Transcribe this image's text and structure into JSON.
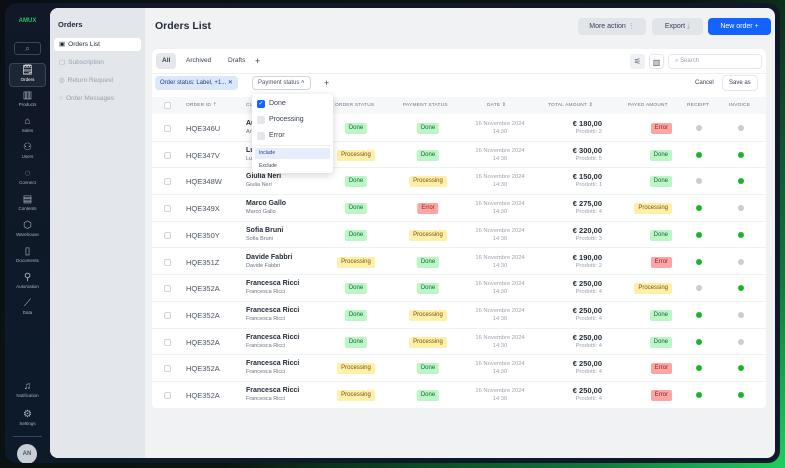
{
  "app": {
    "logo": "AMUX"
  },
  "rail": {
    "search_icon": "search-icon",
    "items": [
      {
        "label": "Orders",
        "icon": "orders-icon",
        "active": true
      },
      {
        "label": "Products",
        "icon": "barcode-icon"
      },
      {
        "label": "Sales",
        "icon": "tag-icon"
      },
      {
        "label": "Users",
        "icon": "users-icon"
      },
      {
        "label": "Connect",
        "icon": "connect-icon"
      },
      {
        "label": "Contents",
        "icon": "contents-icon"
      },
      {
        "label": "Warehouse",
        "icon": "box-icon"
      },
      {
        "label": "Documents",
        "icon": "document-icon"
      },
      {
        "label": "Automation",
        "icon": "automation-icon"
      },
      {
        "label": "Data",
        "icon": "chart-icon"
      }
    ],
    "bottom": [
      {
        "label": "Notification",
        "icon": "bell-icon"
      },
      {
        "label": "Settings",
        "icon": "gear-icon"
      }
    ],
    "avatar": "AN"
  },
  "subnav": {
    "title": "Orders",
    "items": [
      {
        "label": "Orders List",
        "active": true
      },
      {
        "label": "Subscription"
      },
      {
        "label": "Return Request"
      },
      {
        "label": "Order Messages"
      }
    ]
  },
  "header": {
    "title": "Orders List",
    "more_action": "More action",
    "export": "Export",
    "new_order": "New order"
  },
  "tabs": [
    {
      "label": "All",
      "active": true
    },
    {
      "label": "Archived"
    },
    {
      "label": "Drafts"
    }
  ],
  "search": {
    "placeholder": "Search"
  },
  "filters": {
    "chip": "Order status: Label, +1...",
    "payment": "Payment status",
    "cancel": "Cancel",
    "save_as": "Save as"
  },
  "dropdown": {
    "options": [
      {
        "label": "Done",
        "checked": true
      },
      {
        "label": "Processing",
        "checked": false
      },
      {
        "label": "Error",
        "checked": false
      }
    ],
    "modes": [
      "Include",
      "Exclude"
    ],
    "selected_mode": "Include"
  },
  "table": {
    "headers": {
      "order_id": "ORDER ID",
      "customer": "CU",
      "order_status": "ORDER STATUS",
      "payment_status": "PAYMENT STATUS",
      "date": "DATE",
      "total": "TOTAL AMOUNT",
      "payed": "PAYED AMOUNT",
      "receipt": "RECEIPT",
      "invoice": "INVOICE"
    },
    "rows": [
      {
        "id": "HQE346U",
        "name": "Au",
        "sub": "Ar",
        "os": "Done",
        "ps": "Done",
        "date": "16 Novembre 2024",
        "time": "14:30",
        "amount": "€ 180,00",
        "products": "Prodotti: 2",
        "pa": "Error",
        "receipt": false,
        "invoice": false
      },
      {
        "id": "HQE347V",
        "name": "Lu",
        "sub": "Lu",
        "os": "Processing",
        "ps": "Done",
        "date": "16 Novembre 2024",
        "time": "14:30",
        "amount": "€ 300,00",
        "products": "Prodotti: 5",
        "pa": "Done",
        "receipt": true,
        "invoice": true
      },
      {
        "id": "HQE348W",
        "name": "Giulia Neri",
        "sub": "Giulia Neri",
        "os": "Done",
        "ps": "Processing",
        "date": "16 Novembre 2024",
        "time": "14:30",
        "amount": "€ 150,00",
        "products": "Prodotti: 1",
        "pa": "Done",
        "receipt": false,
        "invoice": true
      },
      {
        "id": "HQE349X",
        "name": "Marco Gallo",
        "sub": "Marco Gallo",
        "os": "Done",
        "ps": "Error",
        "date": "16 Novembre 2024",
        "time": "14:30",
        "amount": "€ 275,00",
        "products": "Prodotti: 4",
        "pa": "Processing",
        "receipt": true,
        "invoice": false
      },
      {
        "id": "HQE350Y",
        "name": "Sofia Bruni",
        "sub": "Sofia Bruni",
        "os": "Done",
        "ps": "Processing",
        "date": "16 Novembre 2024",
        "time": "14:30",
        "amount": "€ 220,00",
        "products": "Prodotti: 3",
        "pa": "Done",
        "receipt": true,
        "invoice": true
      },
      {
        "id": "HQE351Z",
        "name": "Davide Fabbri",
        "sub": "Davide Fabbri",
        "os": "Processing",
        "ps": "Done",
        "date": "16 Novembre 2024",
        "time": "14:30",
        "amount": "€ 190,00",
        "products": "Prodotti: 2",
        "pa": "Error",
        "receipt": true,
        "invoice": false
      },
      {
        "id": "HQE352A",
        "name": "Francesca Ricci",
        "sub": "Francesca Ricci",
        "os": "Done",
        "ps": "Done",
        "date": "16 Novembre 2024",
        "time": "14:30",
        "amount": "€ 250,00",
        "products": "Prodotti: 4",
        "pa": "Processing",
        "receipt": false,
        "invoice": true
      },
      {
        "id": "HQE352A",
        "name": "Francesca Ricci",
        "sub": "Francesca Ricci",
        "os": "Done",
        "ps": "Processing",
        "date": "16 Novembre 2024",
        "time": "14:30",
        "amount": "€ 250,00",
        "products": "Prodotti: 4",
        "pa": "Done",
        "receipt": true,
        "invoice": false
      },
      {
        "id": "HQE352A",
        "name": "Francesca Ricci",
        "sub": "Francesca Ricci",
        "os": "Done",
        "ps": "Processing",
        "date": "16 Novembre 2024",
        "time": "14:30",
        "amount": "€ 250,00",
        "products": "Prodotti: 4",
        "pa": "Done",
        "receipt": true,
        "invoice": false
      },
      {
        "id": "HQE352A",
        "name": "Francesca Ricci",
        "sub": "Francesca Ricci",
        "os": "Processing",
        "ps": "Done",
        "date": "16 Novembre 2024",
        "time": "14:30",
        "amount": "€ 250,00",
        "products": "Prodotti: 4",
        "pa": "Error",
        "receipt": true,
        "invoice": true
      },
      {
        "id": "HQE352A",
        "name": "Francesca Ricci",
        "sub": "Francesca Ricci",
        "os": "Processing",
        "ps": "Done",
        "date": "16 Novembre 2024",
        "time": "14:30",
        "amount": "€ 250,00",
        "products": "Prodotti: 4",
        "pa": "Error",
        "receipt": true,
        "invoice": true
      }
    ]
  },
  "colors": {
    "primary": "#1463ff",
    "done": "#bbf7c6",
    "processing": "#fdf0a8",
    "error": "#fca5a5",
    "dot_on": "#16b72e",
    "dot_off": "#c9ced6"
  }
}
